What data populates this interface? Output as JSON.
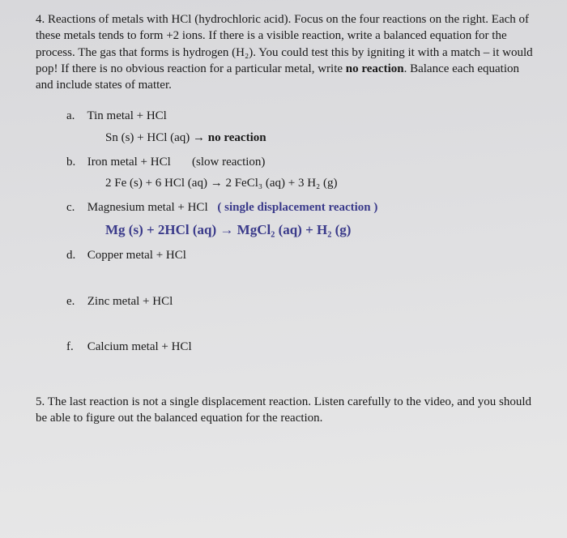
{
  "q4": {
    "number": "4.",
    "intro": "Reactions of metals with HCl (hydrochloric acid). Focus on the four reactions on the right. Each of these metals tends to form +2 ions. If there is a visible reaction, write a balanced equation for the process. The gas that forms is hydrogen (H₂). You could test this by igniting it with a match – it would pop! If there is no obvious reaction for a particular metal, write",
    "intro_bold": "no reaction",
    "intro_end": ". Balance each equation and include states of matter.",
    "items": {
      "a": {
        "label": "a.",
        "title": "Tin metal + HCl",
        "answer_pre": "Sn (s) + HCl (aq) → ",
        "answer_bold": "no reaction"
      },
      "b": {
        "label": "b.",
        "title": "Iron metal + HCl",
        "note": "(slow reaction)",
        "answer": "2 Fe (s) + 6 HCl (aq) → 2 FeCl₃ (aq) + 3 H₂ (g)"
      },
      "c": {
        "label": "c.",
        "title": "Magnesium metal + HCl",
        "hand_note": "( single   displacement  reaction )",
        "hand_answer": "Mg (s)  +  2HCl  (aq)  →  MgCl₂ (aq)  +  H₂ (g)"
      },
      "d": {
        "label": "d.",
        "title": "Copper metal + HCl"
      },
      "e": {
        "label": "e.",
        "title": "Zinc metal + HCl"
      },
      "f": {
        "label": "f.",
        "title": "Calcium metal + HCl"
      }
    }
  },
  "q5": {
    "number": "5.",
    "text": "The last reaction is not a single displacement reaction. Listen carefully to the video, and you should be able to figure out the balanced equation for the reaction."
  }
}
